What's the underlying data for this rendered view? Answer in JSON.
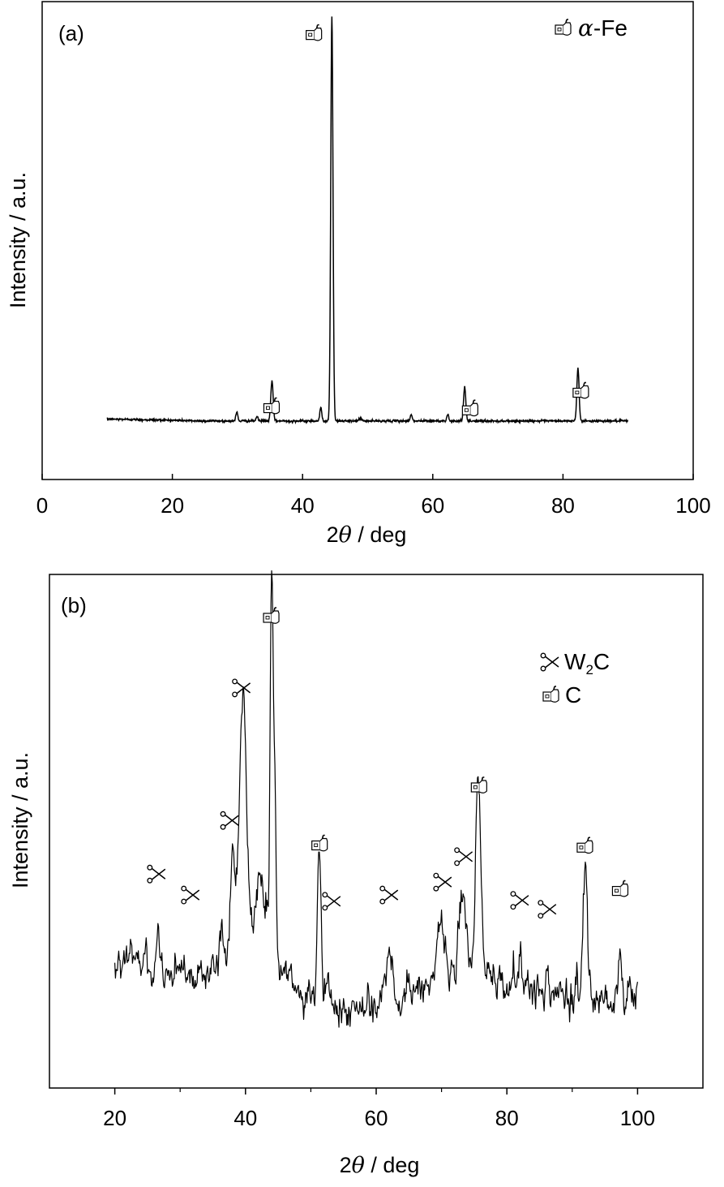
{
  "chart_data": [
    {
      "type": "line",
      "panel_label": "(a)",
      "xlabel_prefix": "2",
      "xlabel_symbol": "θ",
      "xlabel_suffix": " / deg",
      "ylabel": "Intensity / a.u.",
      "xlim": [
        0,
        100
      ],
      "ylim": [
        0,
        100
      ],
      "xticks": [
        0,
        20,
        40,
        60,
        80,
        100
      ],
      "xtick_labels": [
        "0",
        "20",
        "40",
        "60",
        "80",
        "100"
      ],
      "y_ticks_shown": false,
      "grid": false,
      "legend": {
        "position": "top-right",
        "entries": [
          {
            "marker": "alpha-fe-marker-icon",
            "label_symbol": "α",
            "label_text": "-Fe"
          }
        ]
      },
      "baseline": 8.5,
      "peaks": [
        {
          "x": 29.9,
          "height": 2.0,
          "width": 0.15
        },
        {
          "x": 33.0,
          "height": 1.0,
          "width": 0.15
        },
        {
          "x": 35.3,
          "height": 9.0,
          "width": 0.18
        },
        {
          "x": 42.8,
          "height": 3.0,
          "width": 0.15
        },
        {
          "x": 44.5,
          "height": 92.0,
          "width": 0.17
        },
        {
          "x": 48.9,
          "height": 0.6,
          "width": 0.2
        },
        {
          "x": 56.7,
          "height": 1.5,
          "width": 0.15
        },
        {
          "x": 62.3,
          "height": 1.5,
          "width": 0.15
        },
        {
          "x": 64.9,
          "height": 7.7,
          "width": 0.17
        },
        {
          "x": 82.3,
          "height": 12.0,
          "width": 0.17
        }
      ],
      "x_start": 10,
      "x_end": 90,
      "marked_peaks": [
        {
          "x": 35.3,
          "y": 11.5,
          "marker": "alpha-fe-marker-icon"
        },
        {
          "x": 41.8,
          "y": 96.2,
          "marker": "alpha-fe-marker-icon"
        },
        {
          "x": 65.8,
          "y": 11.0,
          "marker": "alpha-fe-marker-icon"
        },
        {
          "x": 82.8,
          "y": 15.0,
          "marker": "alpha-fe-marker-icon"
        }
      ]
    },
    {
      "type": "line",
      "panel_label": "(b)",
      "xlabel_prefix": "2",
      "xlabel_symbol": "θ",
      "xlabel_suffix": " / deg",
      "ylabel": "Intensity / a.u.",
      "xlim": [
        10,
        110
      ],
      "ylim": [
        0,
        100
      ],
      "xticks": [
        20,
        40,
        60,
        80,
        100
      ],
      "xtick_labels": [
        "20",
        "40",
        "60",
        "80",
        "100"
      ],
      "minor_xticks": [
        30,
        50,
        70,
        90
      ],
      "y_ticks_shown": false,
      "grid": false,
      "legend": {
        "position": "top-right",
        "entries": [
          {
            "marker": "w2c-marker-icon",
            "label_main": "W",
            "label_sub": "2",
            "label_tail": "C"
          },
          {
            "marker": "c-marker-icon",
            "label_main": "C"
          }
        ]
      },
      "x_start": 20,
      "x_end": 100,
      "background": [
        [
          20,
          22
        ],
        [
          25,
          20.5
        ],
        [
          30,
          18.5
        ],
        [
          33,
          17.5
        ],
        [
          36,
          19
        ],
        [
          38,
          24
        ],
        [
          42,
          28
        ],
        [
          45,
          19
        ],
        [
          50,
          11
        ],
        [
          55,
          10.5
        ],
        [
          60,
          12
        ],
        [
          65,
          13
        ],
        [
          70,
          17
        ],
        [
          75,
          19
        ],
        [
          80,
          16
        ],
        [
          85,
          14
        ],
        [
          90,
          13
        ],
        [
          95,
          13
        ],
        [
          100,
          13
        ]
      ],
      "noise_amplitude": 2.6,
      "peaks": [
        {
          "x": 26.6,
          "height": 11,
          "width": 0.18
        },
        {
          "x": 31.6,
          "height": 5,
          "width": 0.2
        },
        {
          "x": 36.2,
          "height": 8,
          "width": 0.3
        },
        {
          "x": 38.0,
          "height": 21,
          "width": 0.3
        },
        {
          "x": 39.6,
          "height": 56,
          "width": 0.55
        },
        {
          "x": 42.3,
          "height": 10,
          "width": 0.9
        },
        {
          "x": 44.0,
          "height": 84,
          "width": 0.22
        },
        {
          "x": 44.5,
          "height": 35,
          "width": 0.22
        },
        {
          "x": 51.3,
          "height": 33,
          "width": 0.3
        },
        {
          "x": 52.5,
          "height": 6,
          "width": 0.25
        },
        {
          "x": 62.0,
          "height": 10,
          "width": 0.5
        },
        {
          "x": 64.8,
          "height": 6,
          "width": 0.25
        },
        {
          "x": 70.0,
          "height": 14,
          "width": 0.5
        },
        {
          "x": 73.2,
          "height": 18,
          "width": 0.5
        },
        {
          "x": 75.6,
          "height": 43,
          "width": 0.4
        },
        {
          "x": 82.0,
          "height": 6,
          "width": 0.25
        },
        {
          "x": 86.2,
          "height": 5,
          "width": 0.25
        },
        {
          "x": 92.0,
          "height": 30,
          "width": 0.35
        },
        {
          "x": 97.4,
          "height": 11,
          "width": 0.2
        }
      ],
      "marked_peaks": [
        {
          "x": 26.6,
          "y": 40.5,
          "marker": "w2c-marker-icon"
        },
        {
          "x": 31.8,
          "y": 35.8,
          "marker": "w2c-marker-icon"
        },
        {
          "x": 37.8,
          "y": 52.5,
          "marker": "w2c-marker-icon"
        },
        {
          "x": 39.6,
          "height_y": 0,
          "y": 82.2,
          "marker": "w2c-marker-icon"
        },
        {
          "x": 44.0,
          "y": 98.0,
          "marker": "c-marker-icon"
        },
        {
          "x": 51.4,
          "y": 47.0,
          "marker": "c-marker-icon"
        },
        {
          "x": 53.4,
          "y": 34.4,
          "marker": "w2c-marker-icon"
        },
        {
          "x": 62.2,
          "y": 35.8,
          "marker": "w2c-marker-icon"
        },
        {
          "x": 70.4,
          "y": 38.7,
          "marker": "w2c-marker-icon"
        },
        {
          "x": 73.6,
          "y": 44.4,
          "marker": "w2c-marker-icon"
        },
        {
          "x": 75.8,
          "y": 60.0,
          "marker": "c-marker-icon"
        },
        {
          "x": 82.2,
          "y": 34.6,
          "marker": "w2c-marker-icon"
        },
        {
          "x": 86.4,
          "y": 32.6,
          "marker": "w2c-marker-icon"
        },
        {
          "x": 92.0,
          "y": 46.5,
          "marker": "c-marker-icon"
        },
        {
          "x": 97.4,
          "y": 36.8,
          "marker": "c-marker-icon"
        }
      ]
    }
  ]
}
